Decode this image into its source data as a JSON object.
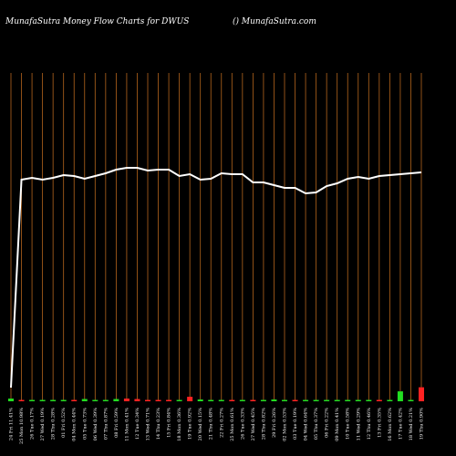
{
  "chart_data": {
    "type": "line",
    "title": "MunafaSutra  Money Flow  Charts for DWUS",
    "subtitle": "() MunafaSutra.com",
    "line_color": "#ffffff",
    "grid_color": "#b5651d",
    "categories": [
      "24 Fri 11.41%",
      "25 Mon 10.98%",
      "26 Tue 0.17%",
      "27 Wed 0.19%",
      "28 Thu 0.28%",
      "01 Fri 0.52%",
      "04 Mon 0.44%",
      "05 Tue 0.73%",
      "06 Wed 0.39%",
      "07 Thu 0.87%",
      "08 Fri 0.59%",
      "11 Mon 0.41%",
      "12 Tue 0.34%",
      "13 Wed 0.71%",
      "14 Thu 0.23%",
      "15 Fri 0.84%",
      "18 Mon 0.36%",
      "19 Tue 0.92%",
      "20 Wed 0.15%",
      "21 Thu 0.48%",
      "22 Fri 0.27%",
      "25 Mon 0.61%",
      "26 Tue 0.33%",
      "27 Wed 0.45%",
      "28 Thu 0.82%",
      "29 Fri 0.26%",
      "02 Mon 0.53%",
      "03 Tue 0.19%",
      "04 Wed 0.64%",
      "05 Thu 0.37%",
      "06 Fri 0.22%",
      "09 Mon 0.41%",
      "10 Tue 0.58%",
      "11 Wed 0.29%",
      "12 Thu 0.46%",
      "13 Fri 0.35%",
      "16 Mon 0.62%",
      "17 Tue 0.42%",
      "18 Wed 0.21%",
      "19 Thu 0.90%"
    ],
    "values": [
      15,
      243,
      245,
      243,
      245,
      248,
      247,
      244,
      247,
      250,
      254,
      256,
      256,
      253,
      254,
      254,
      247,
      249,
      243,
      244,
      250,
      249,
      249,
      240,
      240,
      237,
      234,
      234,
      228,
      229,
      236,
      239,
      244,
      246,
      244,
      247,
      248,
      249,
      250,
      251
    ],
    "ylim": [
      0,
      360
    ],
    "volume": {
      "values": [
        6,
        3,
        3,
        3,
        3,
        3,
        3,
        5,
        3,
        3,
        5,
        6,
        5,
        3,
        3,
        3,
        3,
        10,
        4,
        3,
        3,
        3,
        3,
        3,
        3,
        4,
        3,
        3,
        3,
        3,
        3,
        3,
        3,
        3,
        3,
        3,
        3,
        22,
        3,
        31
      ],
      "colors": [
        "#22dd22",
        "#ff2222",
        "#22dd22",
        "#22dd22",
        "#22dd22",
        "#22dd22",
        "#ff2222",
        "#22dd22",
        "#22dd22",
        "#22dd22",
        "#22dd22",
        "#ff2222",
        "#ff2222",
        "#ff2222",
        "#ff2222",
        "#ff2222",
        "#22dd22",
        "#ff2222",
        "#22dd22",
        "#22dd22",
        "#22dd22",
        "#ff2222",
        "#22dd22",
        "#ff2222",
        "#22dd22",
        "#22dd22",
        "#22dd22",
        "#ff2222",
        "#22dd22",
        "#22dd22",
        "#22dd22",
        "#22dd22",
        "#22dd22",
        "#22dd22",
        "#22dd22",
        "#ff2222",
        "#22dd22",
        "#22dd22",
        "#22dd22",
        "#ff2222"
      ],
      "ylim": [
        0,
        80
      ]
    }
  }
}
